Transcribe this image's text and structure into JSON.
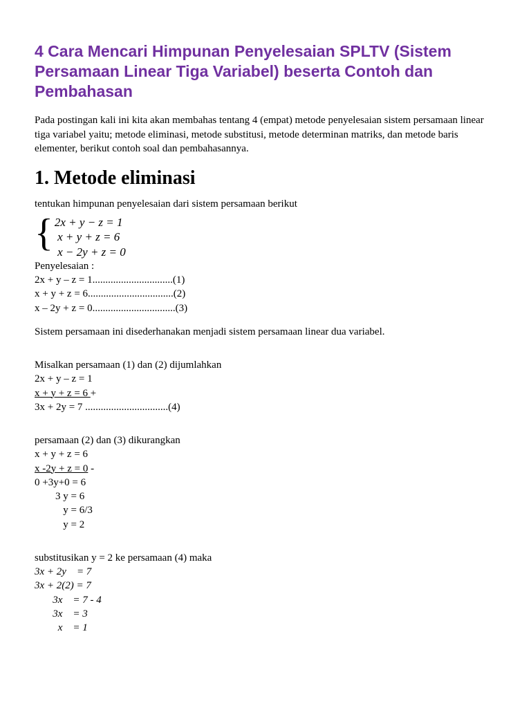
{
  "title": "4 Cara Mencari Himpunan Penyelesaian SPLTV (Sistem Persamaan Linear Tiga Variabel) beserta Contoh dan Pembahasan",
  "intro": "Pada postingan kali ini kita akan membahas tentang 4 (empat) metode penyelesaian sistem persamaan linear tiga variabel yaitu; metode eliminasi, metode substitusi, metode determinan matriks, dan metode baris elementer, berikut contoh soal dan pembahasannya.",
  "h2": "1. Metode eliminasi",
  "subintro": "tentukan himpunan penyelesaian dari sistem persamaan berikut",
  "sys": {
    "eq1": "2x + y − z = 1",
    "eq2": " x + y + z = 6",
    "eq3": " x − 2y + z = 0"
  },
  "peny": {
    "label": "Penyelesaian :",
    "l1": "2x + y – z = 1...............................(1)",
    "l2": "x + y + z = 6.................................(2)",
    "l3": "x – 2y + z = 0................................(3)"
  },
  "simplify": "Sistem persamaan ini disederhanakan menjadi sistem persamaan linear dua variabel.",
  "step1": {
    "head": "Misalkan persamaan (1) dan (2) dijumlahkan",
    "a": "2x + y – z = 1",
    "b": "x + y +  z  = 6 ",
    "op": "  +",
    "r": "3x + 2y    = 7 ................................(4)"
  },
  "step2": {
    "head": "persamaan (2) dan (3) dikurangkan",
    "a": "x + y + z = 6",
    "b": "x -2y + z = 0",
    "op": "  -",
    "r1": "0 +3y+0 = 6",
    "r2": "        3 y = 6",
    "r3": "           y = 6/3",
    "r4": "           y = 2"
  },
  "step3": {
    "head": "substitusikan y = 2 ke persamaan (4) maka",
    "a": "3x + 2y    = 7",
    "b": "3x + 2(2) = 7",
    "c": "       3x    = 7 - 4",
    "d": "       3x    = 3",
    "e": "         x    = 1"
  },
  "colors": {
    "title": "#7030a0",
    "text": "#000000",
    "bg": "#ffffff"
  }
}
